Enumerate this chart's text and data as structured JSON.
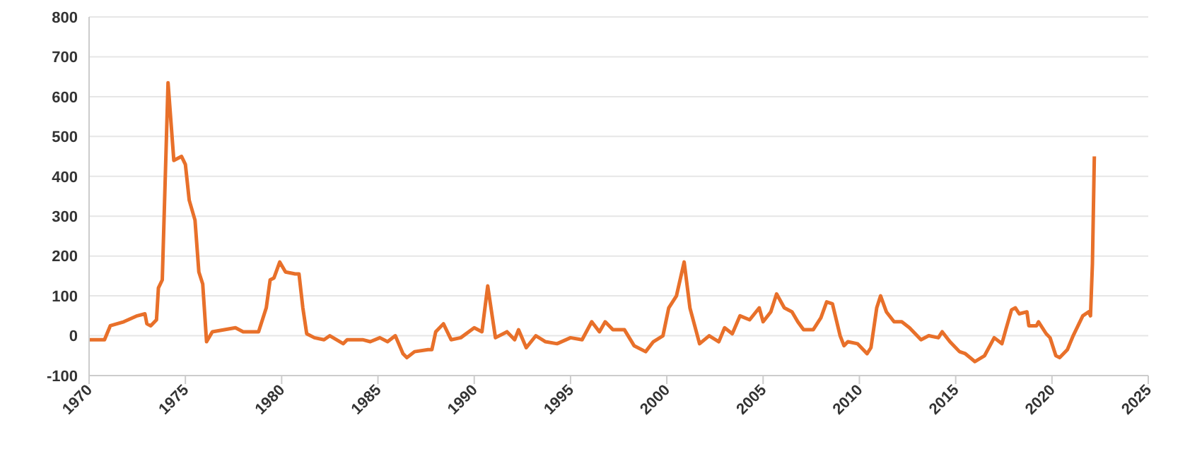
{
  "chart_data": {
    "type": "line",
    "xlim": [
      1970,
      2025
    ],
    "xticks": [
      1970,
      1975,
      1980,
      1985,
      1990,
      1995,
      2000,
      2005,
      2010,
      2015,
      2020,
      2025
    ],
    "ylim": [
      -100,
      800
    ],
    "yticks": [
      -100,
      0,
      100,
      200,
      300,
      400,
      500,
      600,
      700,
      800
    ],
    "grid": "y",
    "marker": "none",
    "line_style": "solid",
    "series": [
      {
        "color": "#e8702a",
        "x": [
          1970,
          1970.8,
          1971.1,
          1971.8,
          1972.5,
          1972.9,
          1973.0,
          1973.2,
          1973.5,
          1973.6,
          1973.8,
          1974.1,
          1974.4,
          1974.8,
          1975.0,
          1975.2,
          1975.5,
          1975.7,
          1975.9,
          1976.1,
          1976.4,
          1977.6,
          1978.0,
          1978.8,
          1979.2,
          1979.4,
          1979.6,
          1979.9,
          1980.2,
          1980.7,
          1980.9,
          1981.1,
          1981.3,
          1981.7,
          1982.2,
          1982.5,
          1983.2,
          1983.4,
          1984.2,
          1984.6,
          1985.1,
          1985.5,
          1985.9,
          1986.3,
          1986.5,
          1986.9,
          1987.6,
          1987.8,
          1988.0,
          1988.4,
          1988.8,
          1989.3,
          1990.0,
          1990.4,
          1990.7,
          1991.1,
          1991.7,
          1992.1,
          1992.3,
          1992.7,
          1993.2,
          1993.7,
          1994.3,
          1995.0,
          1995.6,
          1996.1,
          1996.5,
          1996.8,
          1997.2,
          1997.8,
          1998.3,
          1998.9,
          1999.3,
          1999.8,
          2000.1,
          2000.5,
          2000.9,
          2001.2,
          2001.7,
          2002.2,
          2002.7,
          2003.0,
          2003.4,
          2003.8,
          2004.3,
          2004.8,
          2005.0,
          2005.4,
          2005.7,
          2006.1,
          2006.5,
          2006.8,
          2007.1,
          2007.6,
          2008.0,
          2008.3,
          2008.6,
          2009.0,
          2009.2,
          2009.4,
          2009.9,
          2010.4,
          2010.6,
          2010.9,
          2011.1,
          2011.4,
          2011.8,
          2012.2,
          2012.6,
          2013.2,
          2013.6,
          2014.1,
          2014.3,
          2014.7,
          2015.2,
          2015.5,
          2016.0,
          2016.5,
          2017.0,
          2017.4,
          2017.6,
          2017.9,
          2018.1,
          2018.3,
          2018.7,
          2018.8,
          2019.2,
          2019.3,
          2019.7,
          2019.9,
          2020.2,
          2020.4,
          2020.8,
          2021.1,
          2021.6,
          2021.9,
          2022.0,
          2022.1,
          2022.2
        ],
        "values": [
          -10,
          -10,
          25,
          35,
          50,
          55,
          30,
          25,
          40,
          120,
          140,
          635,
          440,
          450,
          430,
          340,
          290,
          160,
          130,
          -15,
          10,
          20,
          10,
          10,
          70,
          140,
          145,
          185,
          160,
          155,
          155,
          70,
          5,
          -5,
          -10,
          0,
          -20,
          -10,
          -10,
          -15,
          -5,
          -15,
          0,
          -45,
          -55,
          -40,
          -35,
          -35,
          10,
          30,
          -10,
          -5,
          20,
          10,
          125,
          -5,
          10,
          -10,
          15,
          -30,
          0,
          -15,
          -20,
          -5,
          -10,
          35,
          10,
          35,
          15,
          15,
          -25,
          -40,
          -15,
          0,
          70,
          100,
          185,
          70,
          -20,
          0,
          -15,
          20,
          5,
          50,
          40,
          70,
          35,
          60,
          105,
          70,
          60,
          35,
          15,
          15,
          45,
          85,
          80,
          0,
          -25,
          -15,
          -20,
          -45,
          -30,
          70,
          100,
          60,
          35,
          35,
          20,
          -10,
          0,
          -5,
          10,
          -15,
          -40,
          -45,
          -65,
          -50,
          -5,
          -20,
          15,
          65,
          70,
          55,
          60,
          25,
          25,
          35,
          5,
          -5,
          -50,
          -55,
          -35,
          0,
          50,
          60,
          50,
          180,
          450
        ]
      }
    ]
  }
}
